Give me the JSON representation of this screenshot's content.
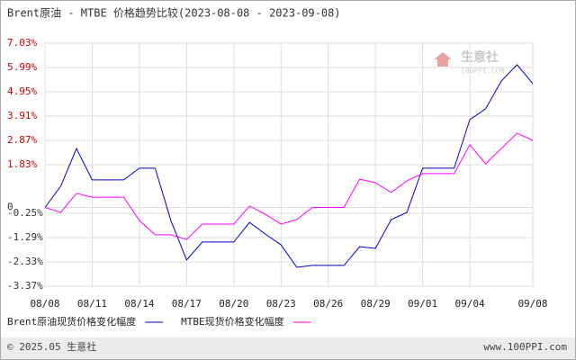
{
  "chart_data": {
    "type": "line",
    "title": "Brent原油 - MTBE 价格趋势比较(2023-08-08 - 2023-09-08)",
    "categories": [
      "08/08",
      null,
      null,
      "08/11",
      null,
      null,
      "08/14",
      null,
      null,
      "08/17",
      null,
      null,
      "08/20",
      null,
      null,
      "08/23",
      null,
      null,
      "08/26",
      null,
      null,
      "08/29",
      null,
      null,
      "09/01",
      null,
      null,
      "09/04",
      null,
      null,
      null,
      "09/08"
    ],
    "series": [
      {
        "name": "Brent原油现货价格变化幅度",
        "color": "#0000cc",
        "values": [
          0,
          0.91,
          2.52,
          1.18,
          1.18,
          1.18,
          1.68,
          1.68,
          -0.56,
          -2.25,
          -1.48,
          -1.48,
          -1.48,
          -0.64,
          -1.14,
          -1.6,
          -2.56,
          -2.48,
          -2.48,
          -2.48,
          -1.68,
          -1.75,
          -0.52,
          -0.21,
          1.68,
          1.68,
          1.68,
          3.76,
          4.22,
          5.41,
          6.11,
          5.3
        ]
      },
      {
        "name": "MTBE现货价格变化幅度",
        "color": "#ff00ff",
        "values": [
          0,
          -0.21,
          0.6,
          0.44,
          0.44,
          0.44,
          -0.56,
          -1.17,
          -1.17,
          -1.37,
          -0.71,
          -0.71,
          -0.71,
          0.06,
          -0.29,
          -0.71,
          -0.52,
          0,
          0,
          0,
          1.21,
          1.06,
          0.64,
          1.14,
          1.45,
          1.45,
          1.45,
          2.68,
          1.87,
          2.52,
          3.18,
          2.87
        ]
      }
    ],
    "ylim": [
      -3.37,
      7.03
    ],
    "yticks": [
      {
        "value": 7.03,
        "label": "7.03%"
      },
      {
        "value": 5.99,
        "label": "5.99%"
      },
      {
        "value": 4.95,
        "label": "4.95%"
      },
      {
        "value": 3.91,
        "label": "3.91%"
      },
      {
        "value": 2.87,
        "label": "2.87%"
      },
      {
        "value": 1.83,
        "label": "1.83%"
      },
      0,
      {
        "value": -0.25,
        "label": "-0.25%"
      },
      {
        "value": -1.29,
        "label": "-1.29%"
      },
      {
        "value": -2.33,
        "label": "-2.33%"
      },
      {
        "value": -3.37,
        "label": "-3.37%"
      }
    ],
    "grid": true,
    "positive_tick_color": "#cc0000",
    "watermark": {
      "name": "生意社",
      "site": "100PPI.COM"
    },
    "footer": {
      "left": "© 2025.05 生意社",
      "right": "www.100PPI.com"
    }
  }
}
